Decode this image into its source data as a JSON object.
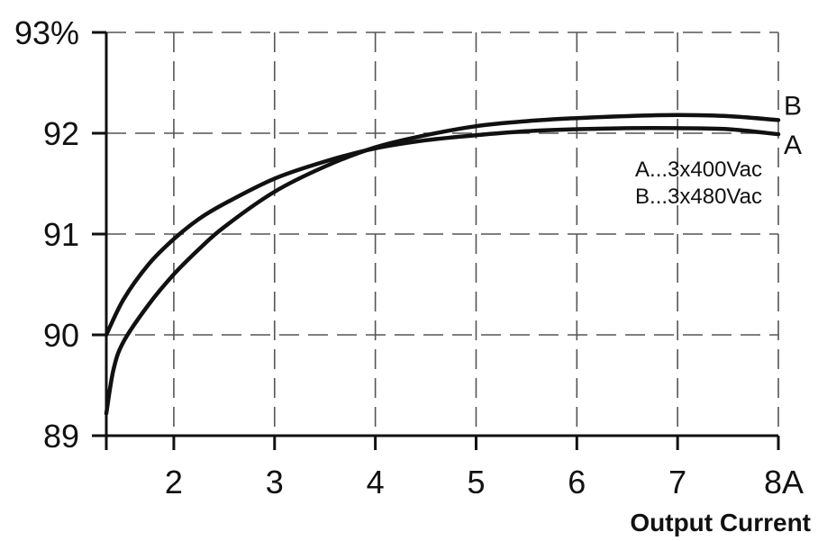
{
  "chart_data": {
    "type": "line",
    "xlabel": "Output Current",
    "x_ticks": [
      {
        "value": 2,
        "label": "2"
      },
      {
        "value": 3,
        "label": "3"
      },
      {
        "value": 4,
        "label": "4"
      },
      {
        "value": 5,
        "label": "5"
      },
      {
        "value": 6,
        "label": "6"
      },
      {
        "value": 7,
        "label": "7"
      },
      {
        "value": 8,
        "label": "8A"
      }
    ],
    "y_ticks": [
      {
        "value": 89,
        "label": "89"
      },
      {
        "value": 90,
        "label": "90"
      },
      {
        "value": 91,
        "label": "91"
      },
      {
        "value": 92,
        "label": "92"
      },
      {
        "value": 93,
        "label": "93%"
      }
    ],
    "xlim": [
      1.33,
      8
    ],
    "ylim": [
      89,
      93
    ],
    "grid": true,
    "grid_style": "dashed",
    "series": [
      {
        "name": "A",
        "end_label": "A",
        "x": [
          1.33,
          1.5,
          1.75,
          2,
          2.25,
          2.5,
          3,
          3.5,
          4,
          4.5,
          5,
          5.5,
          6,
          6.5,
          7,
          7.5,
          8
        ],
        "y": [
          90.0,
          90.35,
          90.7,
          90.95,
          91.15,
          91.3,
          91.55,
          91.72,
          91.85,
          91.93,
          91.98,
          92.02,
          92.04,
          92.05,
          92.05,
          92.04,
          91.99
        ]
      },
      {
        "name": "B",
        "end_label": "B",
        "x": [
          1.33,
          1.4,
          1.5,
          1.75,
          2,
          2.25,
          2.5,
          3,
          3.5,
          4,
          4.5,
          5,
          5.5,
          6,
          6.5,
          7,
          7.5,
          8
        ],
        "y": [
          89.22,
          89.65,
          89.93,
          90.3,
          90.6,
          90.85,
          91.07,
          91.42,
          91.67,
          91.86,
          91.98,
          92.07,
          92.12,
          92.15,
          92.17,
          92.18,
          92.17,
          92.13
        ]
      }
    ],
    "annotations": [
      "A...3x400Vac",
      "B...3x480Vac"
    ],
    "colors": {
      "line": "#111111",
      "grid": "#555555",
      "axis": "#111111"
    }
  }
}
